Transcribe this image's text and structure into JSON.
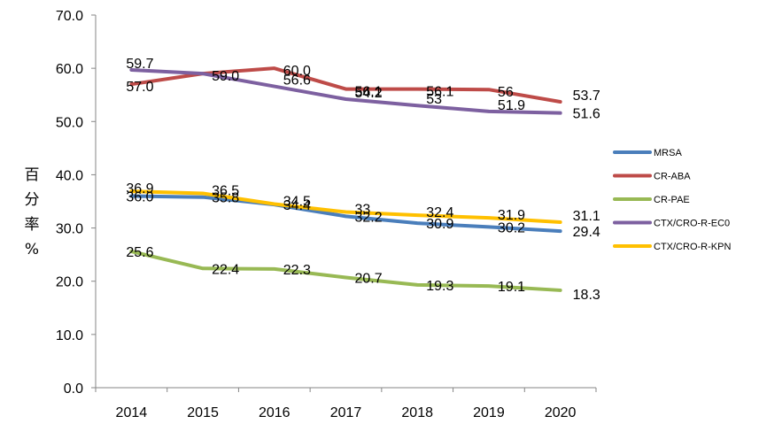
{
  "chart_data": {
    "type": "line",
    "title": "",
    "xlabel": "",
    "ylabel": "百分率%",
    "ylabel_chars": [
      "百",
      "分",
      "率",
      "%"
    ],
    "ylim": [
      0,
      70
    ],
    "ytick_step": 10,
    "yticks": [
      "0.0",
      "10.0",
      "20.0",
      "30.0",
      "40.0",
      "50.0",
      "60.0",
      "70.0"
    ],
    "x": [
      "2014",
      "2015",
      "2016",
      "2017",
      "2018",
      "2019",
      "2020"
    ],
    "grid": false,
    "legend_position": "right",
    "series": [
      {
        "name": "MRSA",
        "color": "#4a7ebb",
        "values": [
          36.0,
          35.8,
          34.4,
          32.2,
          30.9,
          30.2,
          29.4
        ],
        "labels": [
          "36.0",
          "35.8",
          "34.4",
          "32.2",
          "30.9",
          "30.2",
          "29.4"
        ]
      },
      {
        "name": "CR-ABA",
        "color": "#be4b48",
        "values": [
          57.0,
          59.0,
          60.0,
          56.1,
          56.1,
          56.0,
          53.7
        ],
        "labels": [
          "57.0",
          "59.0",
          "60.0",
          "56.1",
          "56.1",
          "56",
          "53.7"
        ]
      },
      {
        "name": "CR-PAE",
        "color": "#98b954",
        "values": [
          25.6,
          22.4,
          22.3,
          20.7,
          19.3,
          19.1,
          18.3
        ],
        "labels": [
          "25.6",
          "22.4",
          "22.3",
          "20.7",
          "19.3",
          "19.1",
          "18.3"
        ]
      },
      {
        "name": "CTX/CRO-R-EC0",
        "color": "#7d60a0",
        "values": [
          59.7,
          59.0,
          56.6,
          54.2,
          53.0,
          51.9,
          51.6
        ],
        "labels": [
          "59.7",
          "",
          "56.6",
          "54.2",
          "53",
          "51.9",
          "51.6"
        ]
      },
      {
        "name": "CTX/CRO-R-KPN",
        "color": "#ffc000",
        "values": [
          36.9,
          36.5,
          34.5,
          33.0,
          32.4,
          31.9,
          31.1
        ],
        "labels": [
          "36.9",
          "36.5",
          "34.5",
          "33",
          "32.4",
          "31.9",
          "31.1"
        ]
      }
    ]
  }
}
